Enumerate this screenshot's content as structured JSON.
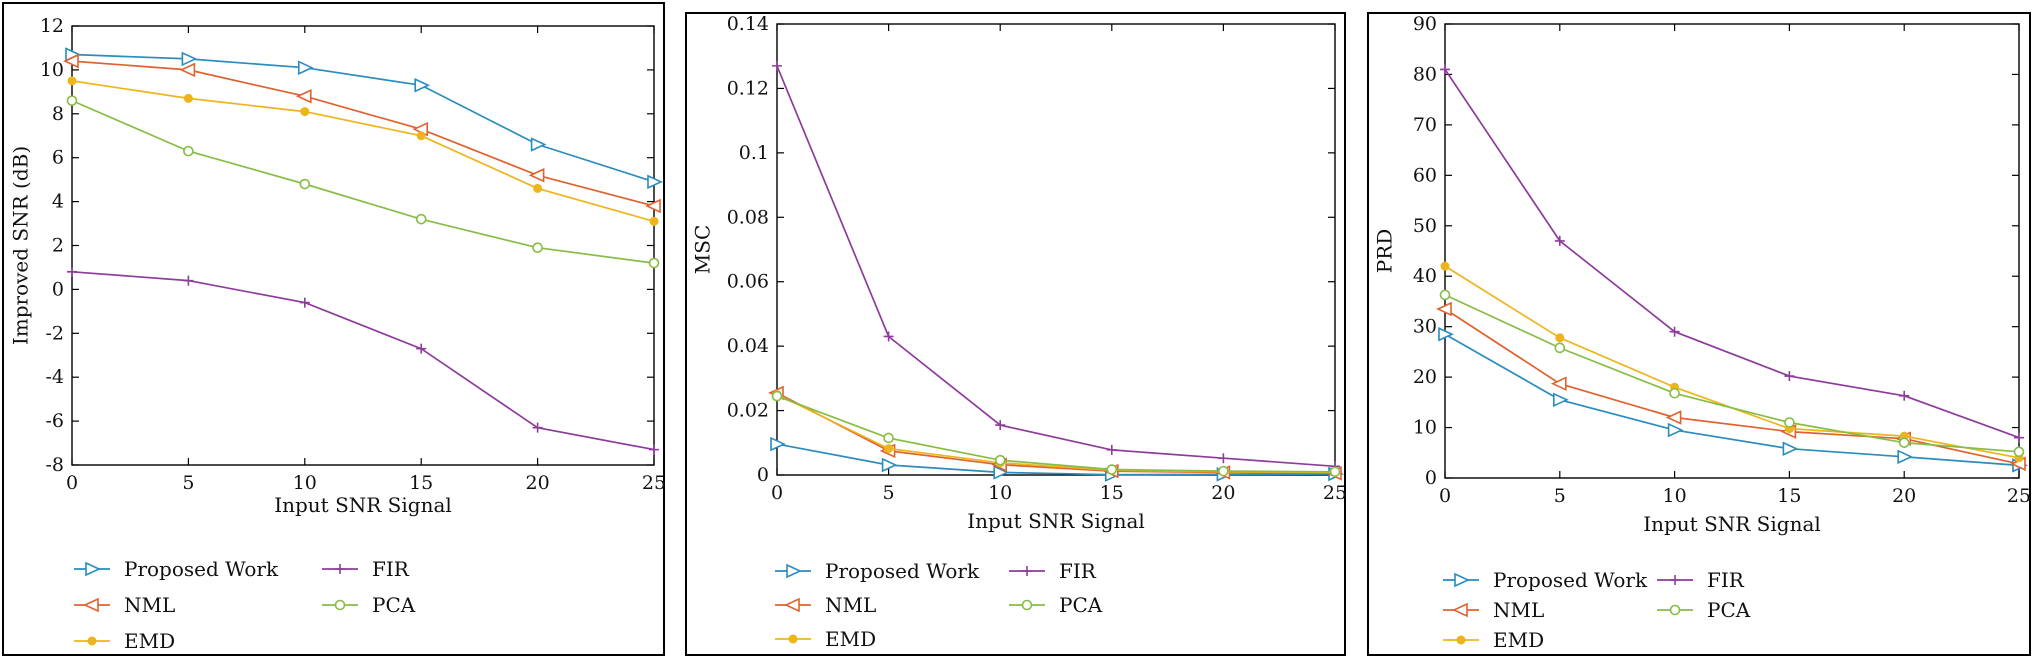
{
  "series_colors": {
    "Proposed Work": "#2a8cbf",
    "NML": "#e0622f",
    "EMD": "#eeb41c",
    "FIR": "#8e3c9b",
    "PCA": "#86bd44"
  },
  "series_markers": {
    "Proposed Work": "triangle-right",
    "NML": "triangle-left",
    "EMD": "filled-circle",
    "FIR": "plus",
    "PCA": "open-circle"
  },
  "chart_data": [
    {
      "type": "line",
      "title": "",
      "xlabel": "Input SNR Signal",
      "ylabel": "Improved SNR (dB)",
      "x": [
        0,
        5,
        10,
        15,
        20,
        25
      ],
      "xlim": [
        0,
        25
      ],
      "ylim": [
        -8,
        12
      ],
      "xticks": [
        "0",
        "5",
        "10",
        "15",
        "20",
        "25"
      ],
      "yticks": [
        "-8",
        "-6",
        "-4",
        "-2",
        "0",
        "2",
        "4",
        "6",
        "8",
        "10",
        "12"
      ],
      "grid": false,
      "legend": "below",
      "legend_order": [
        "Proposed Work",
        "FIR",
        "NML",
        "PCA",
        "EMD"
      ],
      "series": [
        {
          "name": "Proposed Work",
          "values": [
            10.7,
            10.5,
            10.1,
            9.3,
            6.6,
            4.9
          ]
        },
        {
          "name": "NML",
          "values": [
            10.4,
            10.0,
            8.8,
            7.3,
            5.2,
            3.8
          ]
        },
        {
          "name": "EMD",
          "values": [
            9.5,
            8.7,
            8.1,
            7.0,
            4.6,
            3.1
          ]
        },
        {
          "name": "FIR",
          "values": [
            0.8,
            0.4,
            -0.6,
            -2.7,
            -6.3,
            -7.3
          ]
        },
        {
          "name": "PCA",
          "values": [
            8.6,
            6.3,
            4.8,
            3.2,
            1.9,
            1.2
          ]
        }
      ]
    },
    {
      "type": "line",
      "title": "",
      "xlabel": "Input SNR Signal",
      "ylabel": "MSC",
      "x": [
        0,
        5,
        10,
        15,
        20,
        25
      ],
      "xlim": [
        0,
        25
      ],
      "ylim": [
        0,
        0.14
      ],
      "xticks": [
        "0",
        "5",
        "10",
        "15",
        "20",
        "25"
      ],
      "yticks": [
        "0",
        "0.02",
        "0.04",
        "0.06",
        "0.08",
        "0.1",
        "0.12",
        "0.14"
      ],
      "grid": false,
      "legend": "below",
      "legend_order": [
        "Proposed Work",
        "FIR",
        "NML",
        "PCA",
        "EMD"
      ],
      "series": [
        {
          "name": "Proposed Work",
          "values": [
            0.0096,
            0.0031,
            0.0008,
            0.0001,
            0.0002,
            0.0003
          ]
        },
        {
          "name": "NML",
          "values": [
            0.0255,
            0.0075,
            0.0032,
            0.0012,
            0.0008,
            0.0005
          ]
        },
        {
          "name": "EMD",
          "values": [
            0.025,
            0.0082,
            0.0038,
            0.0015,
            0.001,
            0.0008
          ]
        },
        {
          "name": "FIR",
          "values": [
            0.127,
            0.043,
            0.0155,
            0.0078,
            0.0052,
            0.0027
          ]
        },
        {
          "name": "PCA",
          "values": [
            0.0245,
            0.0115,
            0.0046,
            0.0017,
            0.0012,
            0.001
          ]
        }
      ]
    },
    {
      "type": "line",
      "title": "",
      "xlabel": "Input SNR Signal",
      "ylabel": "PRD",
      "x": [
        0,
        5,
        10,
        15,
        20,
        25
      ],
      "xlim": [
        0,
        25
      ],
      "ylim": [
        0,
        90
      ],
      "xticks": [
        "0",
        "5",
        "10",
        "15",
        "20",
        "25"
      ],
      "yticks": [
        "0",
        "10",
        "20",
        "30",
        "40",
        "50",
        "60",
        "70",
        "80",
        "90"
      ],
      "grid": false,
      "legend": "below",
      "legend_order": [
        "Proposed Work",
        "FIR",
        "NML",
        "PCA",
        "EMD"
      ],
      "series": [
        {
          "name": "Proposed Work",
          "values": [
            28.5,
            15.5,
            9.5,
            5.8,
            4.2,
            2.5
          ]
        },
        {
          "name": "NML",
          "values": [
            33.5,
            18.7,
            12.0,
            9.2,
            7.8,
            2.8
          ]
        },
        {
          "name": "EMD",
          "values": [
            42.0,
            27.8,
            18.0,
            9.8,
            8.3,
            4.0
          ]
        },
        {
          "name": "FIR",
          "values": [
            81.0,
            47.0,
            29.0,
            20.2,
            16.3,
            8.0
          ]
        },
        {
          "name": "PCA",
          "values": [
            36.3,
            25.8,
            16.8,
            11.0,
            7.0,
            5.2
          ]
        }
      ]
    }
  ]
}
